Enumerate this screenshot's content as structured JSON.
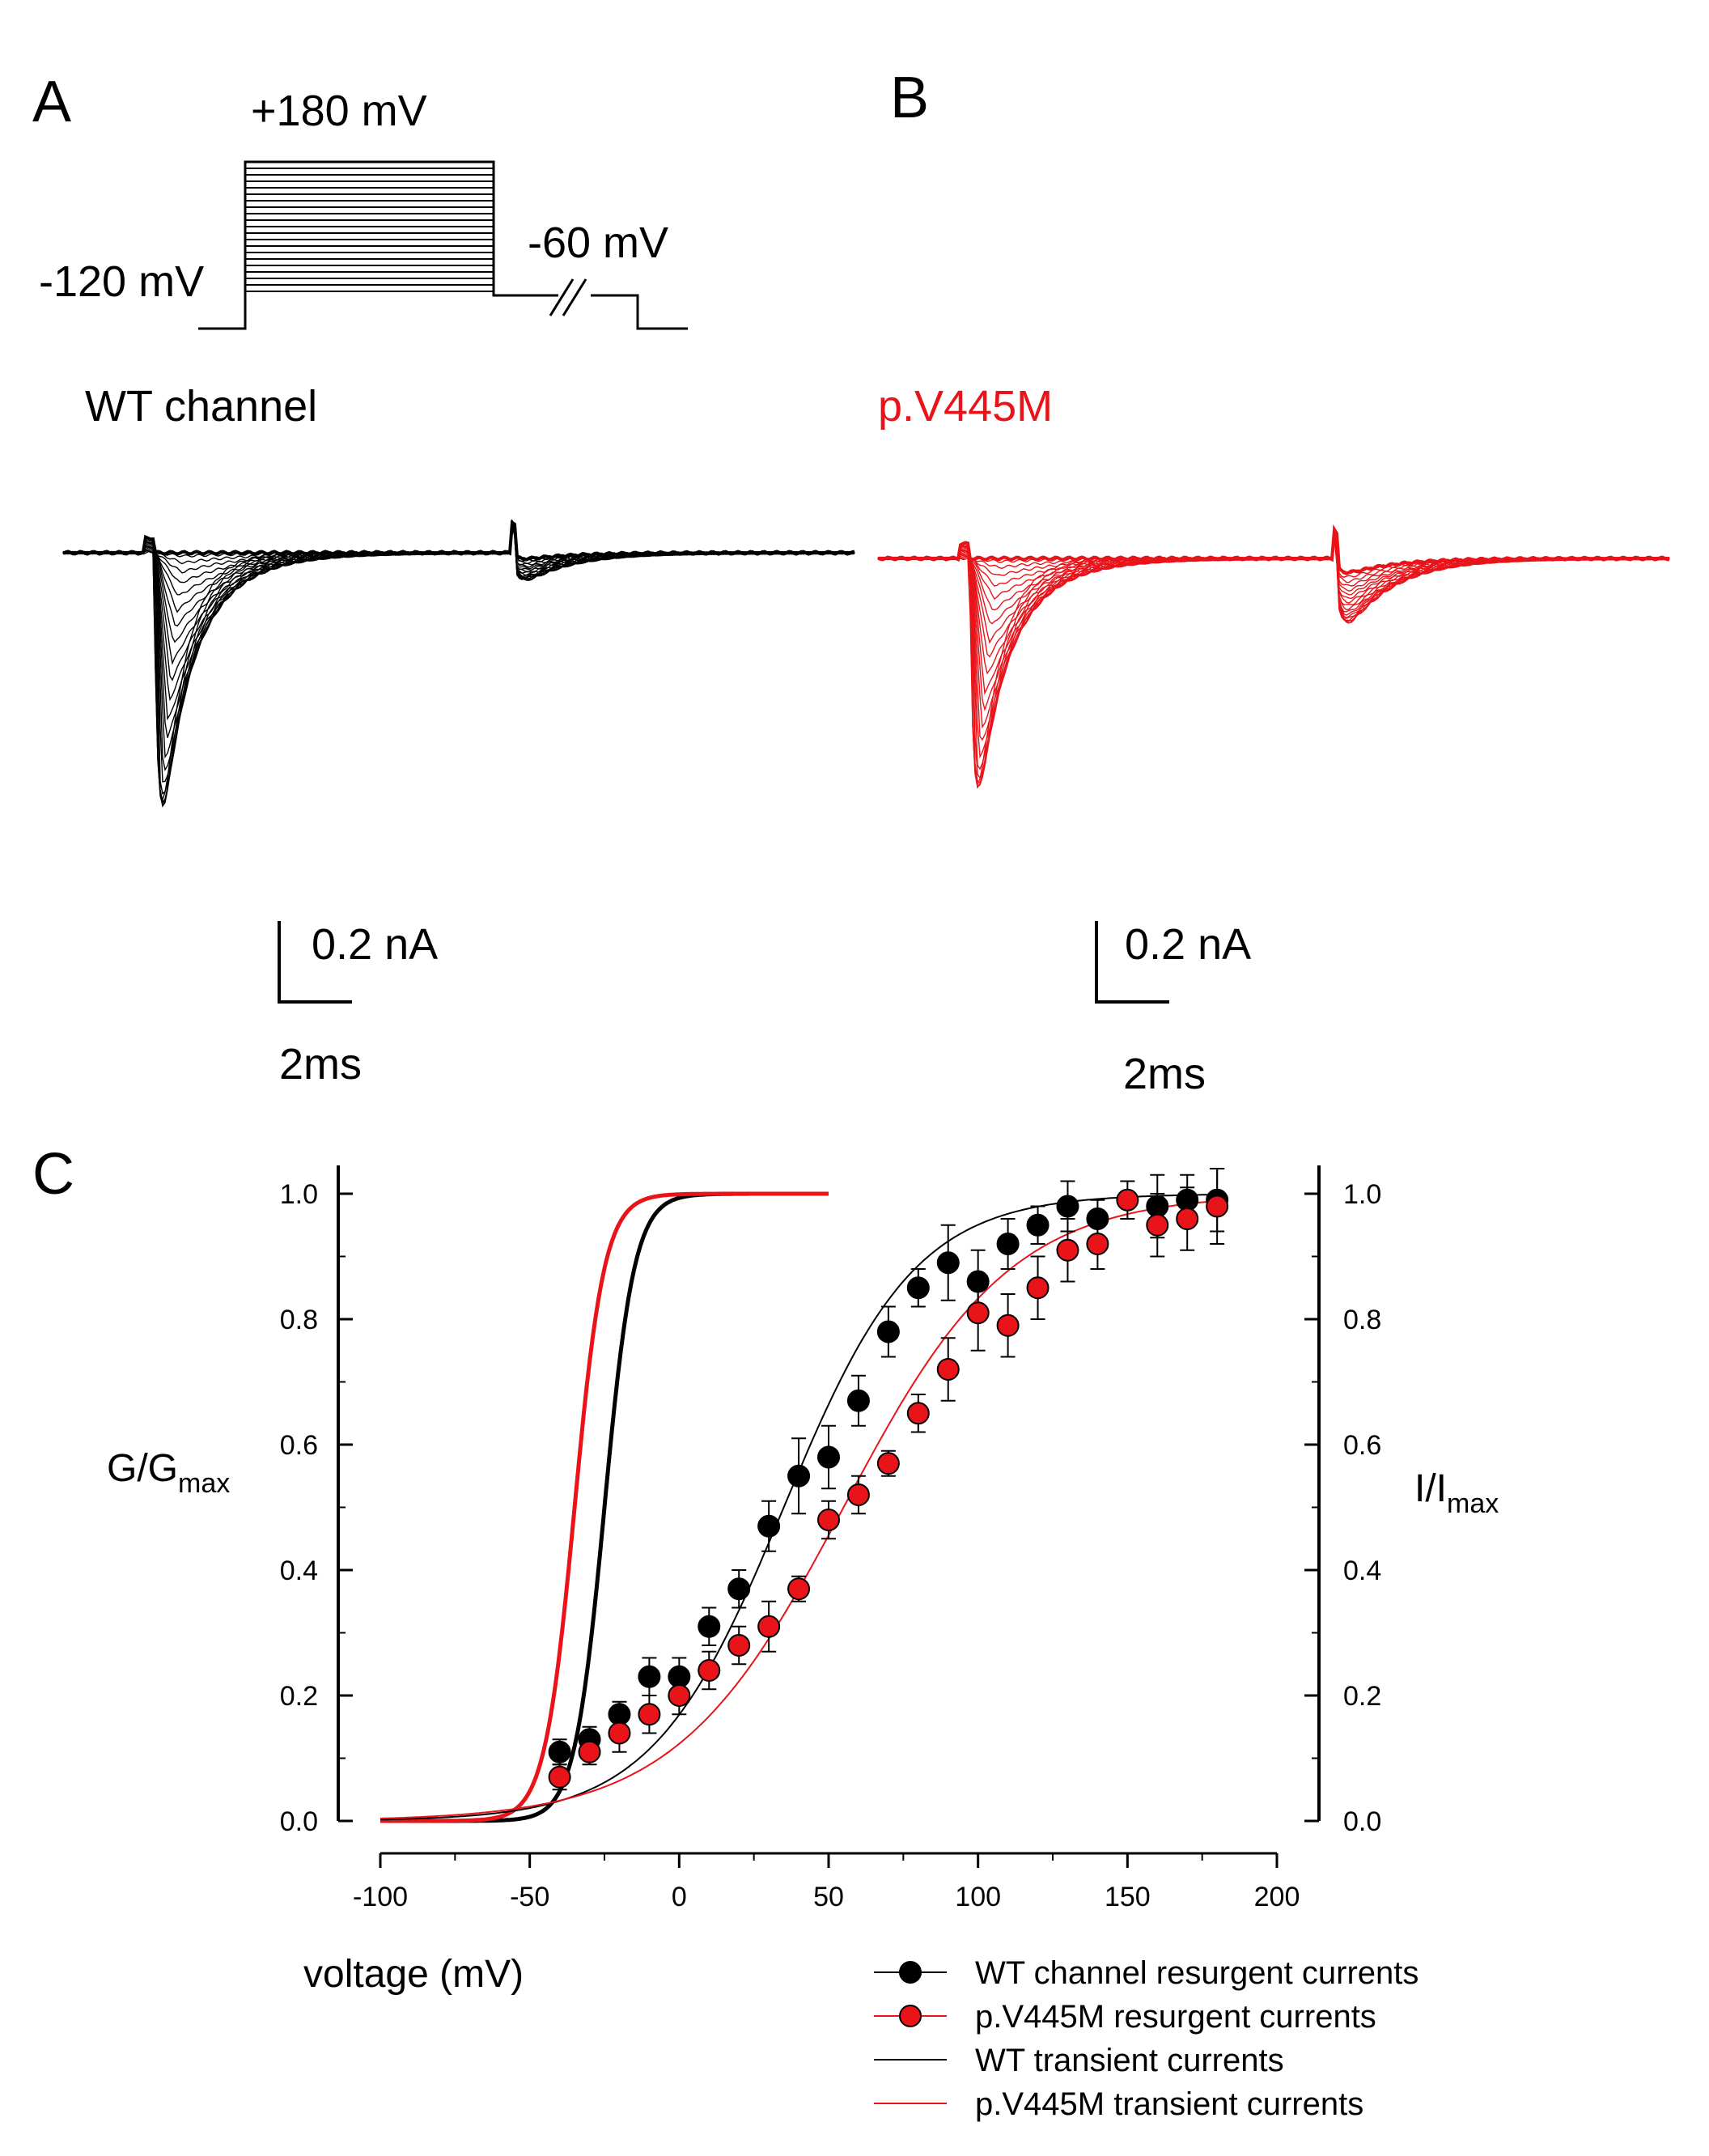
{
  "panels": {
    "a": "A",
    "b": "B",
    "c": "C"
  },
  "protocol": {
    "step_label": "+180 mV",
    "hold_label": "-120 mV",
    "repol_label": "-60 mV"
  },
  "traces": {
    "wt_title": "WT channel",
    "mut_title": "p.V445M",
    "wt_scale_current": "0.2 nA",
    "wt_scale_time": "2ms",
    "mut_scale_current": "0.2 nA",
    "mut_scale_time": "2ms"
  },
  "colors": {
    "wt": "#000000",
    "mut": "#e8141a"
  },
  "chart_data": {
    "type": "scatter",
    "title": "",
    "xlabel": "voltage (mV)",
    "ylabel_left": {
      "main": "G/G",
      "sub": "max"
    },
    "ylabel_right": {
      "main": "I/I",
      "sub": "max"
    },
    "xlim": [
      -100,
      200
    ],
    "ylim": [
      0,
      1.0
    ],
    "xticks": [
      "-100",
      "-50",
      "0",
      "50",
      "100",
      "150",
      "200"
    ],
    "yticks": [
      "0.0",
      "0.2",
      "0.4",
      "0.6",
      "0.8",
      "1.0"
    ],
    "yticks_right": [
      "0.0",
      "0.2",
      "0.4",
      "0.6",
      "0.8",
      "1.0"
    ],
    "series": [
      {
        "name": "WT channel resurgent currents",
        "color": "#000000",
        "kind": "points",
        "x": [
          -40,
          -30,
          -20,
          -10,
          0,
          10,
          20,
          30,
          40,
          50,
          60,
          70,
          80,
          90,
          100,
          110,
          120,
          130,
          140,
          160,
          170,
          180
        ],
        "y": [
          0.11,
          0.13,
          0.17,
          0.23,
          0.23,
          0.31,
          0.37,
          0.47,
          0.55,
          0.58,
          0.67,
          0.78,
          0.85,
          0.89,
          0.86,
          0.92,
          0.95,
          0.98,
          0.96,
          0.98,
          0.99,
          0.99
        ],
        "err": [
          0.02,
          0.02,
          0.02,
          0.03,
          0.03,
          0.03,
          0.03,
          0.04,
          0.06,
          0.05,
          0.04,
          0.04,
          0.03,
          0.06,
          0.05,
          0.04,
          0.03,
          0.04,
          0.03,
          0.05,
          0.04,
          0.05
        ]
      },
      {
        "name": "p.V445M resurgent currents",
        "color": "#e8141a",
        "kind": "points",
        "x": [
          -40,
          -30,
          -20,
          -10,
          0,
          10,
          20,
          30,
          40,
          50,
          60,
          70,
          80,
          90,
          100,
          110,
          120,
          130,
          140,
          150,
          160,
          170,
          180
        ],
        "y": [
          0.07,
          0.11,
          0.14,
          0.17,
          0.2,
          0.24,
          0.28,
          0.31,
          0.37,
          0.48,
          0.52,
          0.57,
          0.65,
          0.72,
          0.81,
          0.79,
          0.85,
          0.91,
          0.92,
          0.99,
          0.95,
          0.96,
          0.98
        ],
        "err": [
          0.02,
          0.02,
          0.03,
          0.03,
          0.03,
          0.03,
          0.03,
          0.04,
          0.02,
          0.03,
          0.03,
          0.02,
          0.03,
          0.05,
          0.06,
          0.05,
          0.05,
          0.05,
          0.04,
          0.03,
          0.05,
          0.05,
          0.06
        ]
      },
      {
        "name": "WT transient currents",
        "color": "#000000",
        "kind": "curve",
        "v_half": -25,
        "slope": 5,
        "x_range": [
          -100,
          50
        ]
      },
      {
        "name": "p.V445M transient currents",
        "color": "#e8141a",
        "kind": "curve",
        "v_half": -35,
        "slope": 5,
        "x_range": [
          -100,
          50
        ]
      }
    ],
    "resurgent_fits": [
      {
        "series": "WT channel resurgent currents",
        "v_half": 35,
        "slope": 22
      },
      {
        "series": "p.V445M resurgent currents",
        "v_half": 55,
        "slope": 28
      }
    ],
    "legend": [
      {
        "label": "WT channel resurgent currents",
        "color": "#000000",
        "marker": true
      },
      {
        "label": "p.V445M resurgent currents",
        "color": "#e8141a",
        "marker": true
      },
      {
        "label": "WT transient currents",
        "color": "#000000",
        "marker": false
      },
      {
        "label": "p.V445M transient currents",
        "color": "#e8141a",
        "marker": false
      }
    ],
    "legend_position": "bottom-right",
    "grid": false
  }
}
